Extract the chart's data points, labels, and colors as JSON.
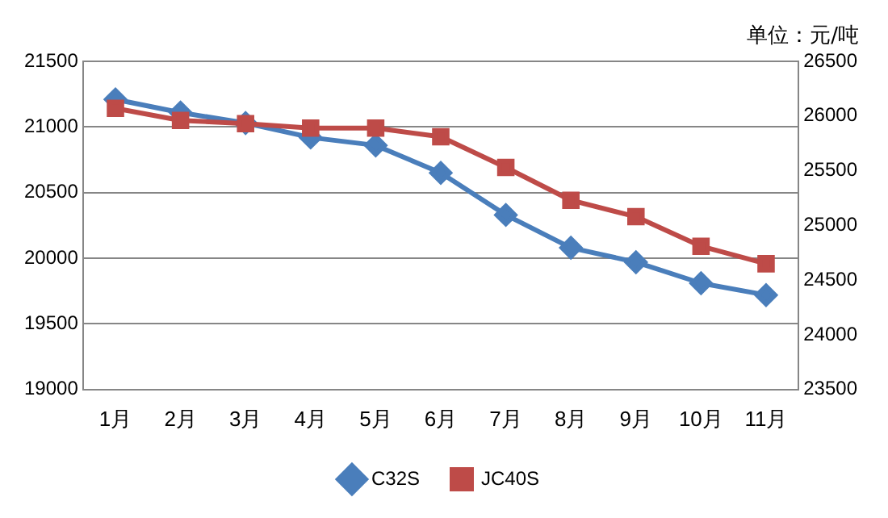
{
  "chart_data": {
    "type": "line",
    "annotations": [
      "单位：元/吨"
    ],
    "categories": [
      "1月",
      "2月",
      "3月",
      "4月",
      "5月",
      "6月",
      "7月",
      "8月",
      "9月",
      "10月",
      "11月"
    ],
    "series": [
      {
        "name": "C32S",
        "color": "#4a7ebb",
        "marker": "diamond",
        "values": [
          21210,
          21110,
          21030,
          20920,
          20860,
          20650,
          20330,
          20080,
          19970,
          19810,
          19720
        ]
      },
      {
        "name": "JC40S",
        "color": "#be4b48",
        "marker": "square",
        "axis": "y2",
        "values": [
          26070,
          25960,
          25930,
          25890,
          25890,
          25810,
          25530,
          25230,
          25080,
          24810,
          24650
        ]
      }
    ],
    "ylim": [
      19000,
      21500
    ],
    "yticks": [
      19000,
      19500,
      20000,
      20500,
      21000,
      21500
    ],
    "y2lim": [
      23500,
      26500
    ],
    "y2ticks": [
      23500,
      24000,
      24500,
      25000,
      25500,
      26000,
      26500
    ],
    "grid": "y",
    "legend": "bottom"
  }
}
